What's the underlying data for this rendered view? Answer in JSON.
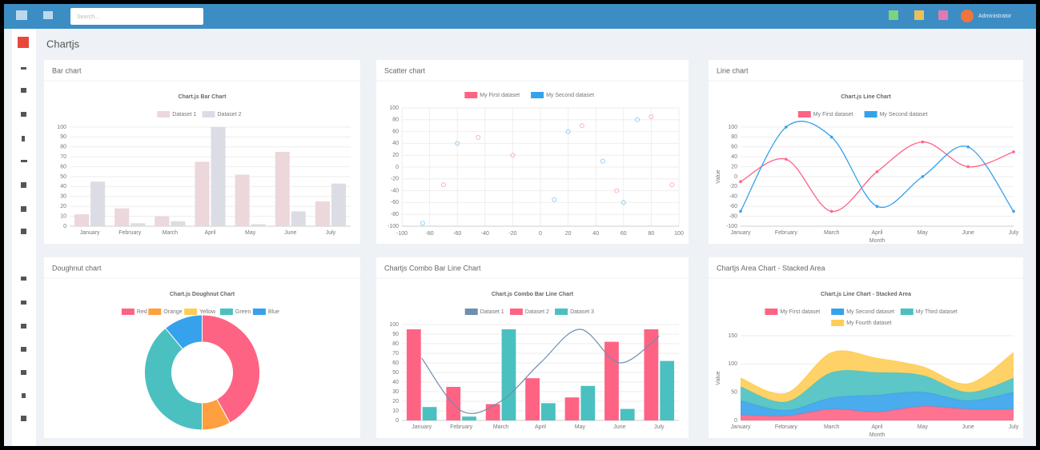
{
  "header": {
    "search_placeholder": "Search...",
    "user_name": "Administrator"
  },
  "page_title": "Chartjs",
  "chart_data": [
    {
      "type": "bar",
      "panel_title": "Bar chart",
      "title": "Chart.js Bar Chart",
      "categories": [
        "January",
        "February",
        "March",
        "April",
        "May",
        "June",
        "July"
      ],
      "series": [
        {
          "name": "Dataset 1",
          "color": "#ecd7db",
          "values": [
            12,
            18,
            10,
            65,
            52,
            75,
            25
          ]
        },
        {
          "name": "Dataset 2",
          "color": "#dcdde4",
          "values": [
            45,
            3,
            5,
            100,
            2,
            15,
            43
          ]
        }
      ],
      "ylim": [
        0,
        100
      ],
      "yticks": [
        0,
        10,
        20,
        30,
        40,
        50,
        60,
        70,
        80,
        90,
        100
      ],
      "grid": true
    },
    {
      "type": "scatter",
      "panel_title": "Scatter chart",
      "title": "",
      "series": [
        {
          "name": "My First dataset",
          "color": "#ff6384",
          "x": [
            -70,
            -20,
            30,
            55,
            80,
            95,
            -45
          ],
          "values": [
            -30,
            20,
            70,
            -40,
            85,
            -30,
            50
          ]
        },
        {
          "name": "My Second dataset",
          "color": "#36a2eb",
          "x": [
            -60,
            10,
            45,
            70,
            -85,
            20,
            60
          ],
          "values": [
            40,
            -55,
            10,
            80,
            -95,
            60,
            -60
          ]
        }
      ],
      "xlim": [
        -100,
        100
      ],
      "xticks": [
        -100,
        -80,
        -60,
        -40,
        -20,
        0,
        20,
        40,
        60,
        80,
        100
      ],
      "ylim": [
        -100,
        100
      ],
      "yticks": [
        -100,
        -80,
        -60,
        -40,
        -20,
        0,
        20,
        40,
        60,
        80,
        100
      ],
      "grid": true
    },
    {
      "type": "line",
      "panel_title": "Line chart",
      "title": "Chart.js Line Chart",
      "categories": [
        "January",
        "February",
        "March",
        "April",
        "May",
        "June",
        "July"
      ],
      "x_label": "Month",
      "y_label": "Value",
      "series": [
        {
          "name": "My First dataset",
          "color": "#ff6384",
          "values": [
            -10,
            35,
            -70,
            10,
            70,
            20,
            50
          ]
        },
        {
          "name": "My Second dataset",
          "color": "#36a2eb",
          "values": [
            -70,
            100,
            80,
            -60,
            0,
            60,
            -70
          ]
        }
      ],
      "ylim": [
        -100,
        100
      ],
      "yticks": [
        -100,
        -80,
        -60,
        -40,
        -20,
        0,
        20,
        40,
        60,
        80,
        100
      ],
      "grid": true
    },
    {
      "type": "doughnut",
      "panel_title": "Doughnut chart",
      "title": "Chart.js Doughnut Chart",
      "labels": [
        "Red",
        "Orange",
        "Yellow",
        "Green",
        "Blue"
      ],
      "colors": [
        "#ff6384",
        "#ff9f40",
        "#ffcd56",
        "#4bc0c0",
        "#36a2eb"
      ],
      "values": [
        42,
        8,
        0,
        39,
        11
      ]
    },
    {
      "type": "bar",
      "panel_title": "Chartjs Combo Bar Line Chart",
      "title": "Chart.js Combo Bar Line Chart",
      "categories": [
        "January",
        "February",
        "March",
        "April",
        "May",
        "June",
        "July"
      ],
      "series": [
        {
          "name": "Dataset 1",
          "type": "line",
          "color": "#6d8fb0",
          "values": [
            65,
            10,
            20,
            60,
            95,
            60,
            88
          ]
        },
        {
          "name": "Dataset 2",
          "color": "#ff6384",
          "values": [
            95,
            35,
            17,
            44,
            24,
            82,
            95
          ]
        },
        {
          "name": "Dataset 3",
          "color": "#4bc0c0",
          "values": [
            14,
            4,
            95,
            18,
            36,
            12,
            62
          ]
        }
      ],
      "ylim": [
        0,
        100
      ],
      "yticks": [
        0,
        10,
        20,
        30,
        40,
        50,
        60,
        70,
        80,
        90,
        100
      ],
      "grid": true
    },
    {
      "type": "area",
      "panel_title": "Chartjs Area Chart - Stacked Area",
      "title": "Chart.js Line Chart - Stacked Area",
      "categories": [
        "January",
        "February",
        "March",
        "April",
        "May",
        "June",
        "July"
      ],
      "x_label": "Month",
      "y_label": "Value",
      "series": [
        {
          "name": "My First dataset",
          "color": "#ff6384",
          "values": [
            10,
            8,
            20,
            15,
            25,
            20,
            20
          ]
        },
        {
          "name": "My Second dataset",
          "color": "#36a2eb",
          "values": [
            25,
            10,
            20,
            30,
            25,
            15,
            30
          ]
        },
        {
          "name": "My Third dataset",
          "color": "#4bc0c0",
          "values": [
            25,
            15,
            45,
            40,
            30,
            15,
            25
          ]
        },
        {
          "name": "My Fourth dataset",
          "color": "#ffcd56",
          "values": [
            15,
            15,
            35,
            25,
            15,
            15,
            45
          ]
        }
      ],
      "ylim": [
        0,
        150
      ],
      "yticks": [
        0,
        50,
        100,
        150
      ],
      "grid": true
    }
  ]
}
